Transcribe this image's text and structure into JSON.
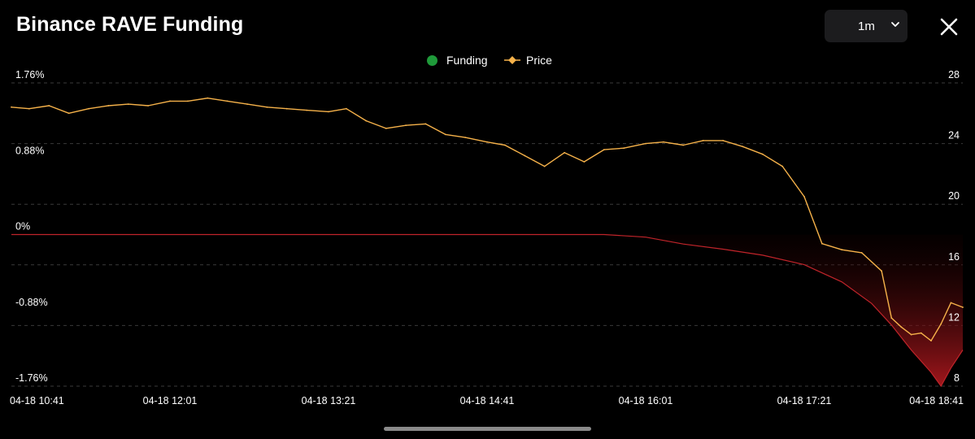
{
  "header": {
    "title": "Binance RAVE Funding",
    "interval_value": "1m"
  },
  "icons": {
    "interval": "chevron-down-icon",
    "close": "close-icon"
  },
  "colors": {
    "background": "#000000",
    "funding": "#c0242a",
    "funding_legend": "#1f9a3a",
    "price": "#f6b24a",
    "grid": "#3a3a3a",
    "text": "#ffffff"
  },
  "chart_data": {
    "type": "line",
    "title": "Binance RAVE Funding",
    "legend": {
      "placement": "top-center",
      "entries": [
        "Funding",
        "Price"
      ]
    },
    "grid": true,
    "x": {
      "tick_labels": [
        "04-18 10:41",
        "04-18 12:01",
        "04-18 13:21",
        "04-18 14:41",
        "04-18 16:01",
        "04-18 17:21",
        "04-18 18:41"
      ],
      "range": [
        "04-18 10:41",
        "04-18 18:41"
      ]
    },
    "y_left": {
      "label": "",
      "tick_labels": [
        "1.76%",
        "0.88%",
        "0%",
        "-0.88%",
        "-1.76%"
      ],
      "range": [
        -1.76,
        1.76
      ],
      "unit": "%"
    },
    "y_right": {
      "label": "",
      "tick_labels": [
        "28",
        "24",
        "20",
        "16",
        "12",
        "8"
      ],
      "range": [
        8,
        28
      ]
    },
    "series": [
      {
        "name": "Funding",
        "axis": "left",
        "style": "line-with-area-fill",
        "times": [
          "10:41",
          "11:20",
          "12:01",
          "12:40",
          "13:21",
          "14:00",
          "14:41",
          "15:20",
          "15:40",
          "16:01",
          "16:20",
          "16:40",
          "17:00",
          "17:21",
          "17:40",
          "17:55",
          "18:05",
          "18:15",
          "18:25",
          "18:30",
          "18:35",
          "18:41"
        ],
        "values": [
          0.0,
          0.0,
          0.0,
          0.0,
          0.0,
          0.0,
          0.0,
          0.0,
          0.0,
          -0.03,
          -0.11,
          -0.17,
          -0.24,
          -0.35,
          -0.55,
          -0.8,
          -1.05,
          -1.34,
          -1.6,
          -1.76,
          -1.55,
          -1.34
        ]
      },
      {
        "name": "Price",
        "axis": "right",
        "style": "line",
        "times": [
          "10:41",
          "10:50",
          "11:00",
          "11:10",
          "11:20",
          "11:30",
          "11:40",
          "11:50",
          "12:01",
          "12:10",
          "12:20",
          "12:30",
          "12:40",
          "12:50",
          "13:00",
          "13:10",
          "13:21",
          "13:30",
          "13:40",
          "13:50",
          "14:00",
          "14:10",
          "14:20",
          "14:30",
          "14:41",
          "14:50",
          "15:00",
          "15:10",
          "15:20",
          "15:30",
          "15:40",
          "15:50",
          "16:01",
          "16:10",
          "16:20",
          "16:30",
          "16:40",
          "16:50",
          "17:00",
          "17:10",
          "17:21",
          "17:30",
          "17:40",
          "17:50",
          "18:00",
          "18:05",
          "18:10",
          "18:15",
          "18:20",
          "18:25",
          "18:30",
          "18:35",
          "18:41"
        ],
        "values": [
          26.4,
          26.3,
          26.5,
          26.0,
          26.3,
          26.5,
          26.6,
          26.5,
          26.8,
          26.8,
          27.0,
          26.8,
          26.6,
          26.4,
          26.3,
          26.2,
          26.1,
          26.3,
          25.5,
          25.0,
          25.2,
          25.3,
          24.6,
          24.4,
          24.1,
          23.9,
          23.2,
          22.5,
          23.4,
          22.8,
          23.6,
          23.7,
          24.0,
          24.1,
          23.9,
          24.2,
          24.2,
          23.8,
          23.3,
          22.5,
          20.5,
          17.4,
          17.0,
          16.8,
          15.6,
          12.5,
          11.9,
          11.4,
          11.5,
          11.0,
          12.1,
          13.5,
          13.2
        ]
      }
    ]
  }
}
